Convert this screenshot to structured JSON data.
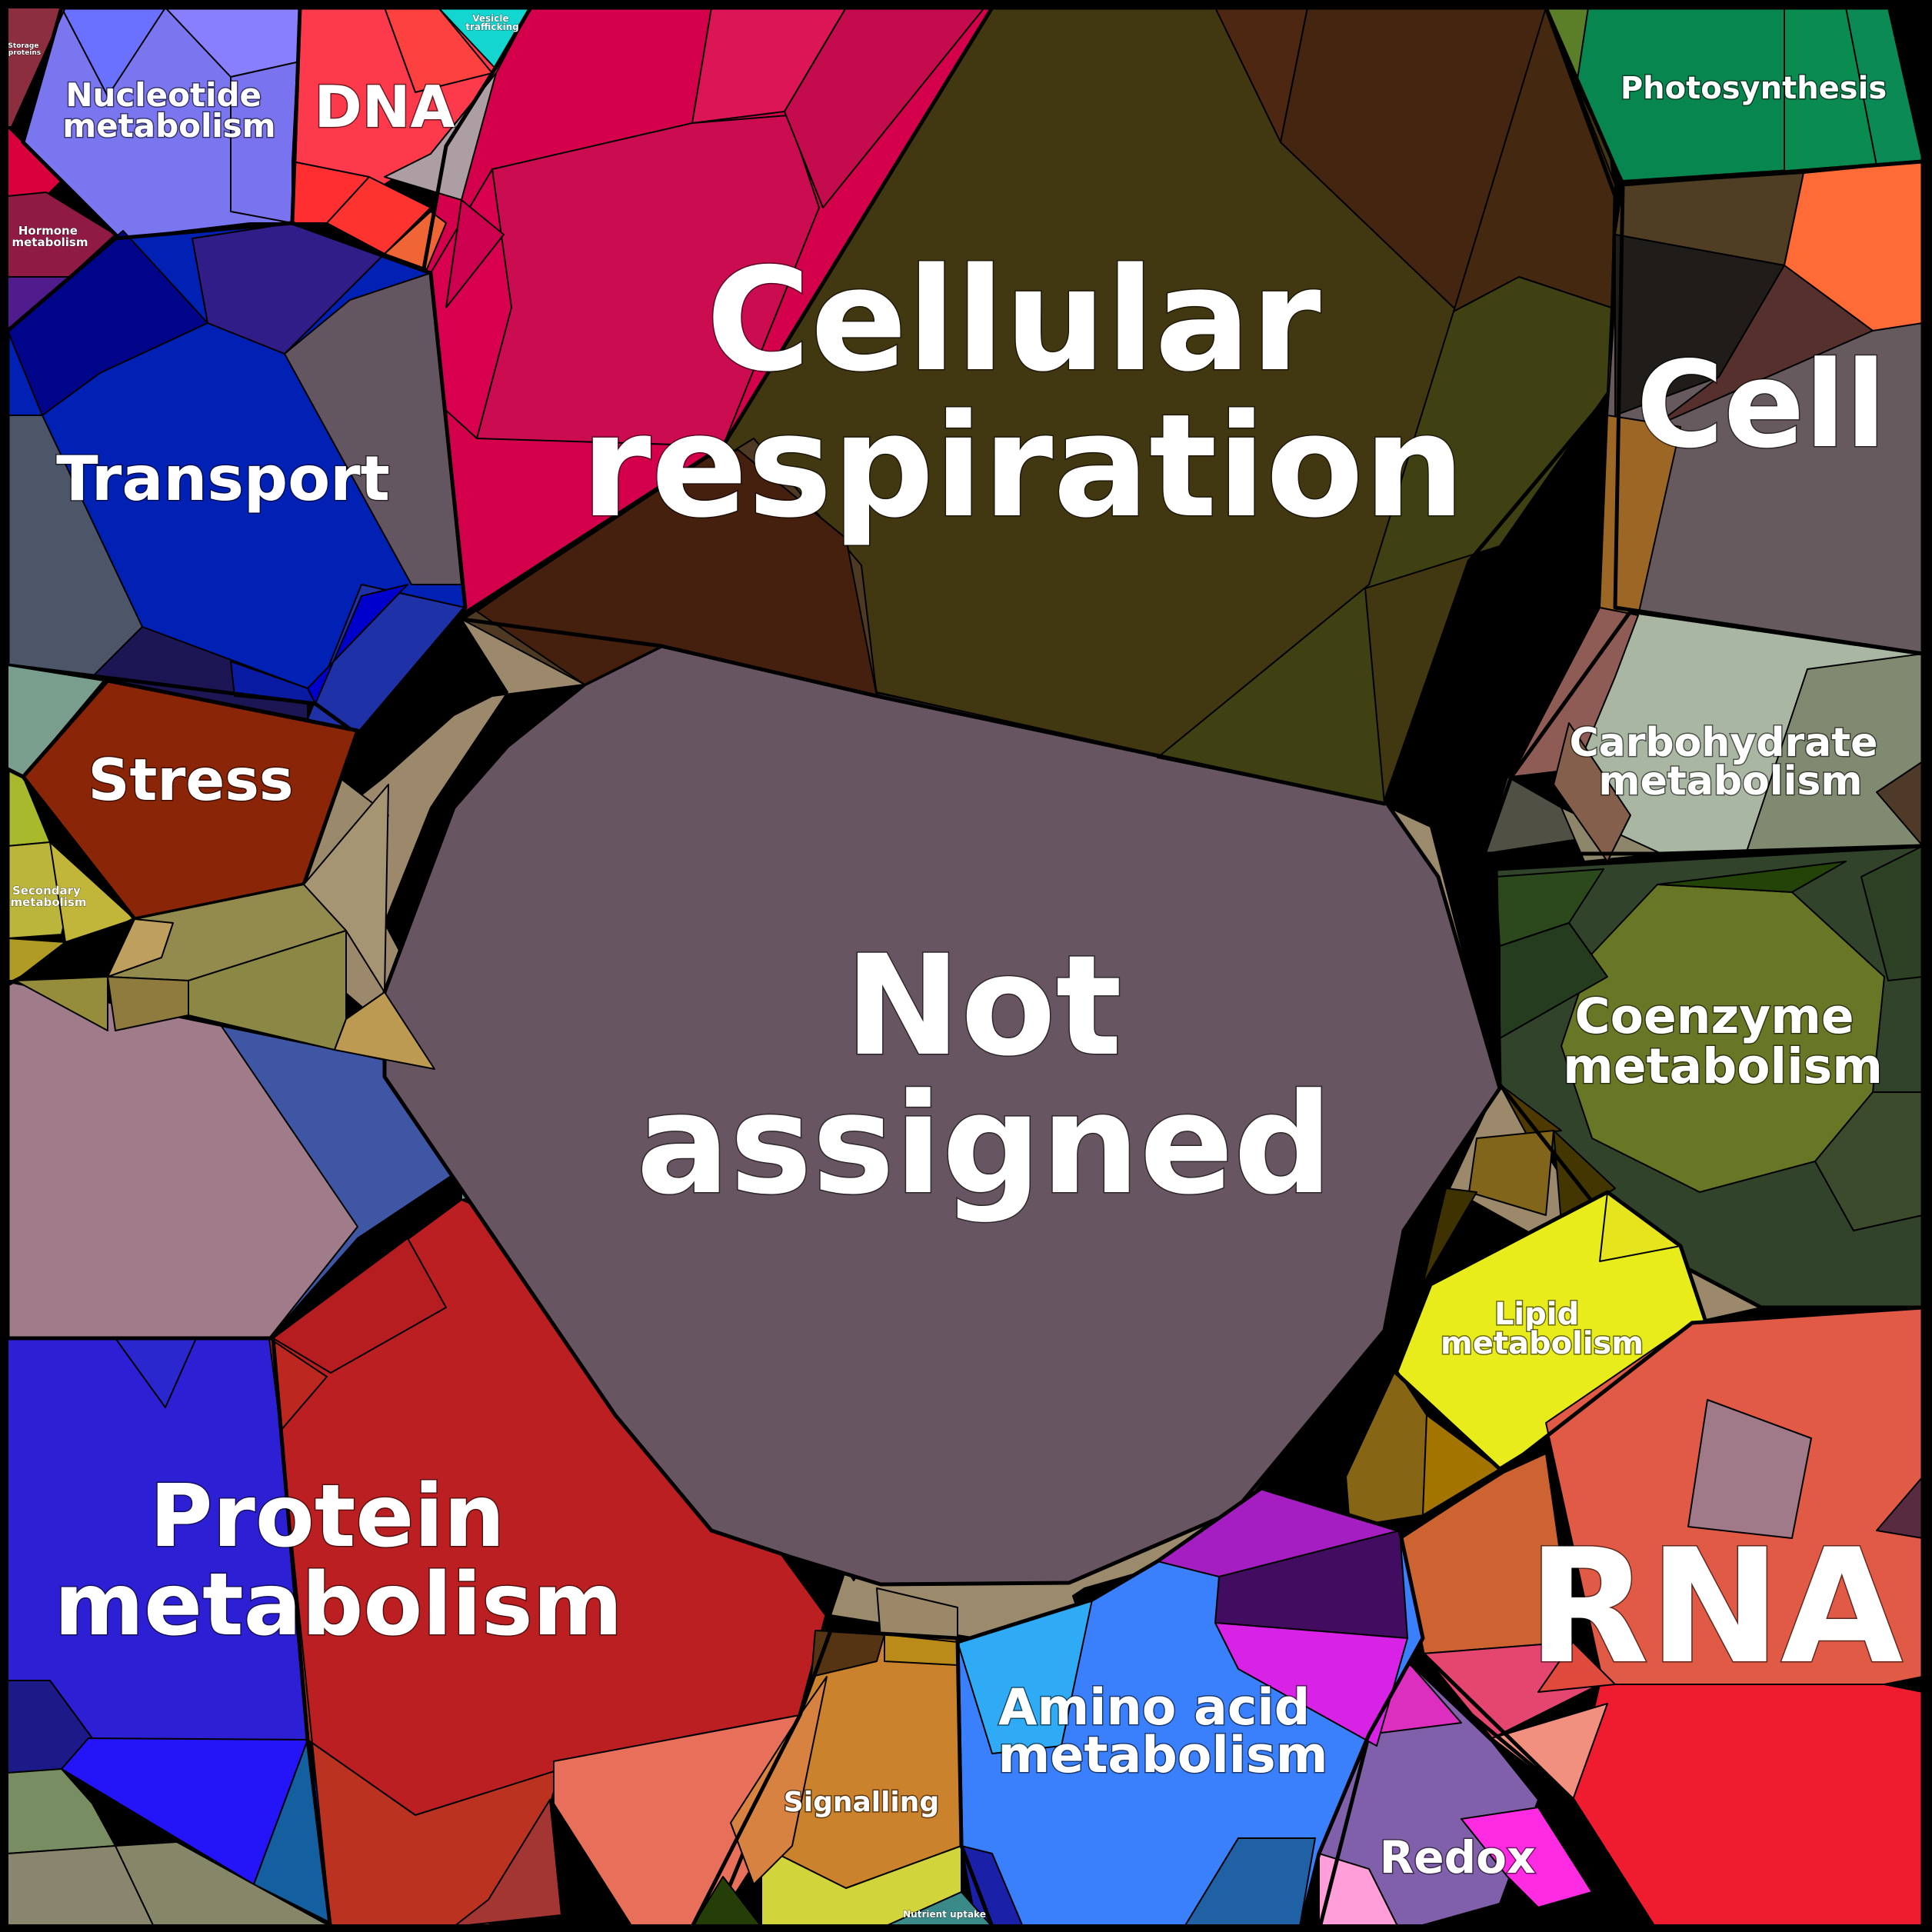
{
  "diagram": {
    "type": "voronoi-treemap",
    "frame_color": "#000000",
    "categories": [
      {
        "id": "not-assigned",
        "lines": [
          "Not",
          "assigned"
        ],
        "color": "#675661"
      },
      {
        "id": "cellular-respiration",
        "lines": [
          "Cellular",
          "respiration"
        ],
        "color": "#413710"
      },
      {
        "id": "cell",
        "lines": [
          "Cell"
        ],
        "color": "#655660"
      },
      {
        "id": "photosynthesis",
        "lines": [
          "Photosynthesis"
        ],
        "color": "#07874f"
      },
      {
        "id": "dna",
        "lines": [
          "DNA"
        ],
        "color": "#fd3a4c"
      },
      {
        "id": "nucleotide-metabolism",
        "lines": [
          "Nucleotide",
          "metabolism"
        ],
        "color": "#7a76f0"
      },
      {
        "id": "storage-proteins",
        "lines": [
          "Storage",
          "proteins"
        ],
        "color": "#8c2e3e"
      },
      {
        "id": "vesicle-trafficking",
        "lines": [
          "Vesicle",
          "trafficking"
        ],
        "color": "#14d6d0"
      },
      {
        "id": "hormone-metabolism",
        "lines": [
          "Hormone",
          "metabolism"
        ],
        "color": "#8f1b45"
      },
      {
        "id": "transport",
        "lines": [
          "Transport"
        ],
        "color": "#0120b4"
      },
      {
        "id": "stress",
        "lines": [
          "Stress"
        ],
        "color": "#8a2508"
      },
      {
        "id": "secondary-metabolism",
        "lines": [
          "Secondary",
          "metabolism"
        ],
        "color": "#bbb53c"
      },
      {
        "id": "carbohydrate-metabolism",
        "lines": [
          "Carbohydrate",
          "metabolism"
        ],
        "color": "#a8b6a2"
      },
      {
        "id": "coenzyme-metabolism",
        "lines": [
          "Coenzyme",
          "metabolism"
        ],
        "color": "#687726"
      },
      {
        "id": "lipid-metabolism",
        "lines": [
          "Lipid",
          "metabolism"
        ],
        "color": "#e7ec1a"
      },
      {
        "id": "rna",
        "lines": [
          "RNA"
        ],
        "color": "#ee1c2e"
      },
      {
        "id": "redox",
        "lines": [
          "Redox"
        ],
        "color": "#8060aa"
      },
      {
        "id": "amino-acid-metabolism",
        "lines": [
          "Amino acid",
          "metabolism"
        ],
        "color": "#3a7ffb"
      },
      {
        "id": "signalling",
        "lines": [
          "Signalling"
        ],
        "color": "#ca822c"
      },
      {
        "id": "nutrient-uptake",
        "lines": [
          "Nutrient uptake"
        ],
        "color": "#3b8a8a"
      },
      {
        "id": "protein-metabolism",
        "lines": [
          "Protein",
          "metabolism"
        ],
        "color": "#bb1f21"
      }
    ]
  }
}
